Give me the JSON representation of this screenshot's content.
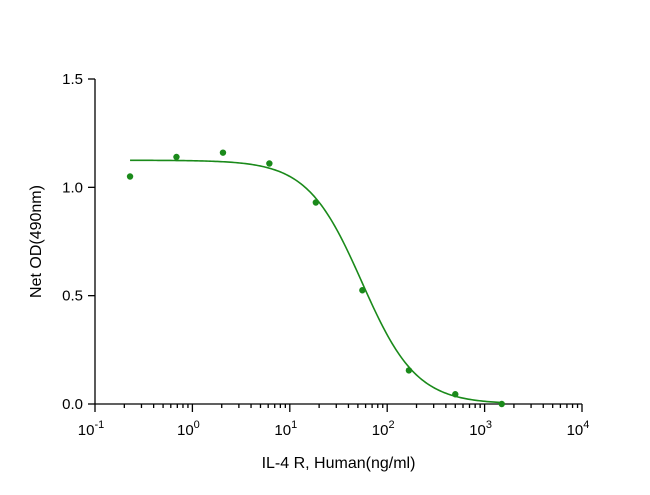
{
  "chart_data": {
    "type": "scatter",
    "title": "",
    "xlabel": "IL-4 R, Human(ng/ml)",
    "ylabel": "Net OD(490nm)",
    "xscale": "log",
    "xlim": [
      0.1,
      10000
    ],
    "ylim": [
      0,
      1.5
    ],
    "x_ticks": [
      {
        "value": 0.1,
        "base": "10",
        "exp": "-1"
      },
      {
        "value": 1,
        "base": "10",
        "exp": "0"
      },
      {
        "value": 10,
        "base": "10",
        "exp": "1"
      },
      {
        "value": 100,
        "base": "10",
        "exp": "2"
      },
      {
        "value": 1000,
        "base": "10",
        "exp": "3"
      },
      {
        "value": 10000,
        "base": "10",
        "exp": "4"
      }
    ],
    "y_ticks": [
      {
        "value": 0,
        "label": "0.0"
      },
      {
        "value": 0.5,
        "label": "0.5"
      },
      {
        "value": 1.0,
        "label": "1.0"
      },
      {
        "value": 1.5,
        "label": "1.5"
      }
    ],
    "grid": false,
    "color": "#1a8a1a",
    "series": [
      {
        "x": [
          0.229,
          0.686,
          2.06,
          6.17,
          18.5,
          55.6,
          167,
          500,
          1500
        ],
        "y": [
          1.05,
          1.14,
          1.16,
          1.11,
          0.93,
          0.525,
          0.155,
          0.045,
          0.0
        ]
      }
    ],
    "fit": {
      "type": "4PL",
      "top": 1.125,
      "bottom": 0.0,
      "ec50": 55,
      "hill": 1.55
    }
  }
}
